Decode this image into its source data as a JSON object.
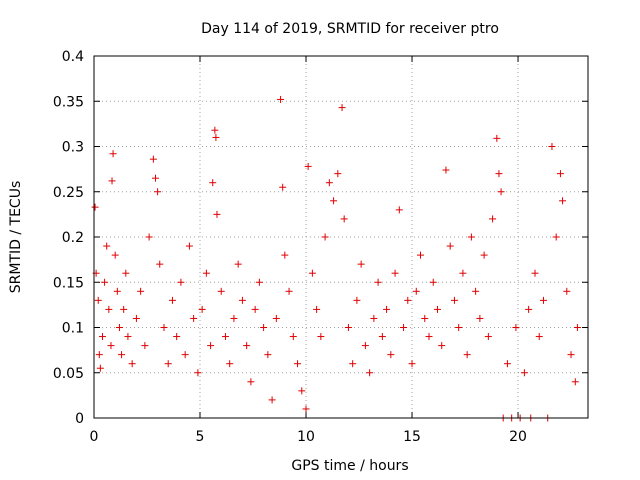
{
  "chart_data": {
    "type": "scatter",
    "title": "Day 114 of 2019, SRMTID for receiver ptro",
    "xlabel": "GPS time / hours",
    "ylabel": "SRMTID / TECUs",
    "xlim": [
      0,
      23.3
    ],
    "ylim": [
      0,
      0.4
    ],
    "x_ticks": [
      0,
      5,
      10,
      15,
      20
    ],
    "x_tick_labels": [
      "0",
      "5",
      "10",
      "15",
      "20"
    ],
    "y_ticks": [
      0,
      0.05,
      0.1,
      0.15,
      0.2,
      0.25,
      0.3,
      0.35,
      0.4
    ],
    "y_tick_labels": [
      "0",
      "0.05",
      "0.1",
      "0.15",
      "0.2",
      "0.25",
      "0.3",
      "0.35",
      "0.4"
    ],
    "grid": true,
    "marker": "+",
    "color": "#e00000",
    "series": [
      {
        "name": "SRMTID",
        "points": [
          [
            0.05,
            0.233
          ],
          [
            0.1,
            0.16
          ],
          [
            0.2,
            0.13
          ],
          [
            0.25,
            0.07
          ],
          [
            0.3,
            0.055
          ],
          [
            0.4,
            0.09
          ],
          [
            0.5,
            0.15
          ],
          [
            0.6,
            0.19
          ],
          [
            0.7,
            0.12
          ],
          [
            0.8,
            0.08
          ],
          [
            0.85,
            0.262
          ],
          [
            0.9,
            0.292
          ],
          [
            1.0,
            0.18
          ],
          [
            1.1,
            0.14
          ],
          [
            1.2,
            0.1
          ],
          [
            1.3,
            0.07
          ],
          [
            1.4,
            0.12
          ],
          [
            1.5,
            0.16
          ],
          [
            1.6,
            0.09
          ],
          [
            1.8,
            0.06
          ],
          [
            2.0,
            0.11
          ],
          [
            2.2,
            0.14
          ],
          [
            2.4,
            0.08
          ],
          [
            2.6,
            0.2
          ],
          [
            2.8,
            0.286
          ],
          [
            2.9,
            0.265
          ],
          [
            3.0,
            0.25
          ],
          [
            3.1,
            0.17
          ],
          [
            3.3,
            0.1
          ],
          [
            3.5,
            0.06
          ],
          [
            3.7,
            0.13
          ],
          [
            3.9,
            0.09
          ],
          [
            4.1,
            0.15
          ],
          [
            4.3,
            0.07
          ],
          [
            4.5,
            0.19
          ],
          [
            4.7,
            0.11
          ],
          [
            4.9,
            0.05
          ],
          [
            5.1,
            0.12
          ],
          [
            5.3,
            0.16
          ],
          [
            5.5,
            0.08
          ],
          [
            5.6,
            0.26
          ],
          [
            5.7,
            0.318
          ],
          [
            5.75,
            0.31
          ],
          [
            5.8,
            0.225
          ],
          [
            6.0,
            0.14
          ],
          [
            6.2,
            0.09
          ],
          [
            6.4,
            0.06
          ],
          [
            6.6,
            0.11
          ],
          [
            6.8,
            0.17
          ],
          [
            7.0,
            0.13
          ],
          [
            7.2,
            0.08
          ],
          [
            7.4,
            0.04
          ],
          [
            7.6,
            0.12
          ],
          [
            7.8,
            0.15
          ],
          [
            8.0,
            0.1
          ],
          [
            8.2,
            0.07
          ],
          [
            8.4,
            0.02
          ],
          [
            8.6,
            0.11
          ],
          [
            8.8,
            0.352
          ],
          [
            8.9,
            0.255
          ],
          [
            9.0,
            0.18
          ],
          [
            9.2,
            0.14
          ],
          [
            9.4,
            0.09
          ],
          [
            9.6,
            0.06
          ],
          [
            9.8,
            0.03
          ],
          [
            10.0,
            0.01
          ],
          [
            10.1,
            0.278
          ],
          [
            10.3,
            0.16
          ],
          [
            10.5,
            0.12
          ],
          [
            10.7,
            0.09
          ],
          [
            10.9,
            0.2
          ],
          [
            11.1,
            0.26
          ],
          [
            11.3,
            0.24
          ],
          [
            11.5,
            0.27
          ],
          [
            11.7,
            0.343
          ],
          [
            11.8,
            0.22
          ],
          [
            12.0,
            0.1
          ],
          [
            12.2,
            0.06
          ],
          [
            12.4,
            0.13
          ],
          [
            12.6,
            0.17
          ],
          [
            12.8,
            0.08
          ],
          [
            13.0,
            0.05
          ],
          [
            13.2,
            0.11
          ],
          [
            13.4,
            0.15
          ],
          [
            13.6,
            0.09
          ],
          [
            13.8,
            0.12
          ],
          [
            14.0,
            0.07
          ],
          [
            14.2,
            0.16
          ],
          [
            14.4,
            0.23
          ],
          [
            14.6,
            0.1
          ],
          [
            14.8,
            0.13
          ],
          [
            15.0,
            0.06
          ],
          [
            15.2,
            0.14
          ],
          [
            15.4,
            0.18
          ],
          [
            15.6,
            0.11
          ],
          [
            15.8,
            0.09
          ],
          [
            16.0,
            0.15
          ],
          [
            16.2,
            0.12
          ],
          [
            16.4,
            0.08
          ],
          [
            16.6,
            0.274
          ],
          [
            16.8,
            0.19
          ],
          [
            17.0,
            0.13
          ],
          [
            17.2,
            0.1
          ],
          [
            17.4,
            0.16
          ],
          [
            17.6,
            0.07
          ],
          [
            17.8,
            0.2
          ],
          [
            18.0,
            0.14
          ],
          [
            18.2,
            0.11
          ],
          [
            18.4,
            0.18
          ],
          [
            18.6,
            0.09
          ],
          [
            18.8,
            0.22
          ],
          [
            19.0,
            0.309
          ],
          [
            19.1,
            0.27
          ],
          [
            19.2,
            0.25
          ],
          [
            19.3,
            0.0
          ],
          [
            19.5,
            0.06
          ],
          [
            19.7,
            0.0
          ],
          [
            19.9,
            0.1
          ],
          [
            20.1,
            0.0
          ],
          [
            20.3,
            0.05
          ],
          [
            20.5,
            0.12
          ],
          [
            20.6,
            0.0
          ],
          [
            20.8,
            0.16
          ],
          [
            21.0,
            0.09
          ],
          [
            21.2,
            0.13
          ],
          [
            21.4,
            0.0
          ],
          [
            21.6,
            0.3
          ],
          [
            21.8,
            0.2
          ],
          [
            22.0,
            0.27
          ],
          [
            22.1,
            0.24
          ],
          [
            22.3,
            0.14
          ],
          [
            22.5,
            0.07
          ],
          [
            22.7,
            0.04
          ],
          [
            22.8,
            0.1
          ]
        ]
      }
    ]
  }
}
